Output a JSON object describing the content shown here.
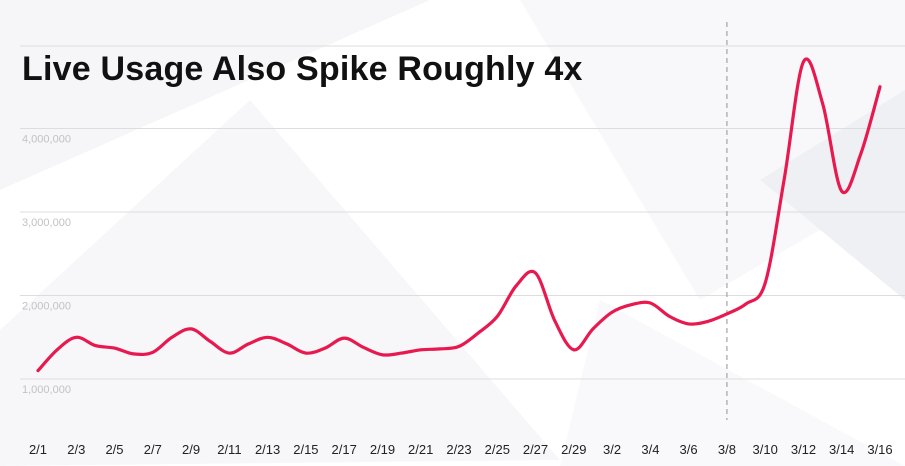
{
  "chart_data": {
    "type": "line",
    "title": "Live Usage Also Spike Roughly 4x",
    "xlabel": "",
    "ylabel": "",
    "ylim": [
      500000,
      5000000
    ],
    "y_ticks": [
      "1,000,000",
      "2,000,000",
      "3,000,000",
      "4,000,000"
    ],
    "y_tick_values": [
      1000000,
      2000000,
      3000000,
      4000000
    ],
    "grid": true,
    "legend": "none",
    "series_color": "#e8194f",
    "marker_line_color": "#aaaaaa",
    "marker_at": "3/8",
    "x": [
      "2/1",
      "2/2",
      "2/3",
      "2/4",
      "2/5",
      "2/6",
      "2/7",
      "2/8",
      "2/9",
      "2/10",
      "2/11",
      "2/12",
      "2/13",
      "2/14",
      "2/15",
      "2/16",
      "2/17",
      "2/18",
      "2/19",
      "2/20",
      "2/21",
      "2/22",
      "2/23",
      "2/24",
      "2/25",
      "2/26",
      "2/27",
      "2/28",
      "2/29",
      "3/1",
      "3/2",
      "3/3",
      "3/4",
      "3/5",
      "3/6",
      "3/7",
      "3/8",
      "3/9",
      "3/10",
      "3/11",
      "3/12",
      "3/13",
      "3/14",
      "3/15",
      "3/16"
    ],
    "x_tick_labels": [
      "2/1",
      "2/3",
      "2/5",
      "2/7",
      "2/9",
      "2/11",
      "2/13",
      "2/15",
      "2/17",
      "2/19",
      "2/21",
      "2/23",
      "2/25",
      "2/27",
      "2/29",
      "3/2",
      "3/4",
      "3/6",
      "3/8",
      "3/10",
      "3/12",
      "3/14",
      "3/16"
    ],
    "series": [
      {
        "values": [
          1100000,
          1350000,
          1500000,
          1400000,
          1370000,
          1300000,
          1320000,
          1500000,
          1600000,
          1450000,
          1310000,
          1420000,
          1500000,
          1420000,
          1310000,
          1370000,
          1490000,
          1380000,
          1290000,
          1310000,
          1350000,
          1360000,
          1390000,
          1550000,
          1750000,
          2120000,
          2270000,
          1700000,
          1350000,
          1600000,
          1800000,
          1890000,
          1910000,
          1750000,
          1660000,
          1690000,
          1780000,
          1900000,
          2150000,
          3400000,
          4800000,
          4300000,
          3250000,
          3700000,
          4500000
        ]
      }
    ]
  }
}
